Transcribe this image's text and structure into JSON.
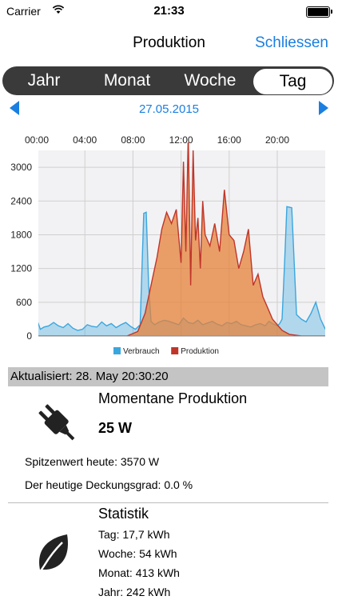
{
  "status_bar": {
    "carrier": "Carrier",
    "time": "21:33"
  },
  "nav": {
    "title": "Produktion",
    "close_label": "Schliessen"
  },
  "segments": [
    {
      "label": "Jahr",
      "selected": false
    },
    {
      "label": "Monat",
      "selected": false
    },
    {
      "label": "Woche",
      "selected": false
    },
    {
      "label": "Tag",
      "selected": true
    }
  ],
  "date": "27.05.2015",
  "chart_data": {
    "type": "area",
    "x_ticks": [
      "00:00",
      "04:00",
      "08:00",
      "12:00",
      "16:00",
      "20:00"
    ],
    "y_ticks": [
      "0",
      "600",
      "1200",
      "1800",
      "2400",
      "3000"
    ],
    "ylim": [
      0,
      3300
    ],
    "xlim": [
      0,
      24
    ],
    "grid": true,
    "legend_position": "bottom",
    "series": [
      {
        "name": "Verbrauch",
        "color": "#3aa6de",
        "x": [
          0,
          0.3,
          0.6,
          1,
          1.4,
          1.8,
          2.2,
          2.6,
          3,
          3.4,
          3.8,
          4.2,
          4.6,
          5,
          5.4,
          5.8,
          6.2,
          6.6,
          7,
          7.4,
          7.8,
          8.2,
          8.6,
          8.9,
          9.1,
          9.3,
          9.5,
          9.8,
          10.2,
          10.6,
          11,
          11.4,
          11.8,
          12.2,
          12.6,
          13,
          13.4,
          13.8,
          14.2,
          14.6,
          15,
          15.4,
          15.8,
          16.2,
          16.6,
          17,
          17.4,
          17.8,
          18.2,
          18.6,
          19,
          19.3,
          19.6,
          19.8,
          20,
          20.2,
          20.4,
          20.6,
          20.8,
          21.2,
          21.6,
          22,
          22.4,
          22.8,
          23.2,
          23.6,
          24
        ],
        "values": [
          300,
          120,
          160,
          180,
          240,
          180,
          150,
          220,
          140,
          100,
          120,
          200,
          170,
          160,
          250,
          180,
          220,
          150,
          200,
          240,
          170,
          120,
          200,
          2180,
          2200,
          900,
          260,
          200,
          250,
          280,
          260,
          230,
          200,
          320,
          240,
          220,
          280,
          200,
          230,
          260,
          210,
          180,
          240,
          220,
          260,
          200,
          180,
          160,
          200,
          220,
          180,
          260,
          220,
          200,
          180,
          220,
          300,
          1250,
          2300,
          2280,
          380,
          300,
          250,
          400,
          600,
          300,
          120
        ]
      },
      {
        "name": "Produktion",
        "color": "#c0352a",
        "x": [
          0,
          7.5,
          8.4,
          9,
          9.5,
          10,
          10.4,
          10.8,
          11.2,
          11.6,
          12,
          12.2,
          12.4,
          12.6,
          12.8,
          13,
          13.2,
          13.4,
          13.6,
          13.8,
          14,
          14.4,
          14.8,
          15.2,
          15.6,
          16,
          16.4,
          16.8,
          17.2,
          17.6,
          18,
          18.4,
          18.8,
          19.2,
          19.6,
          20,
          20.4,
          21,
          22,
          24
        ],
        "values": [
          0,
          0,
          80,
          400,
          900,
          1400,
          1900,
          2200,
          2000,
          2250,
          1300,
          3100,
          1500,
          3600,
          900,
          3300,
          1700,
          2100,
          1200,
          2400,
          1800,
          1600,
          2000,
          1500,
          2600,
          1800,
          1700,
          1200,
          1500,
          1900,
          900,
          1100,
          700,
          500,
          300,
          200,
          100,
          30,
          0,
          0
        ]
      }
    ]
  },
  "updated": "Aktualisiert: 28. May 20:30:20",
  "production": {
    "heading": "Momentane Produktion",
    "current": "25 W",
    "peak": "Spitzenwert heute: 3570 W",
    "coverage": "Der heutige Deckungsgrad: 0.0 %"
  },
  "stats": {
    "heading": "Statistik",
    "day": "Tag: 17,7 kWh",
    "week": "Woche: 54 kWh",
    "month": "Monat: 413 kWh",
    "year": "Jahr: 242 kWh"
  },
  "icons": {
    "plug": "plug-icon",
    "leaf": "leaf-icon",
    "wifi": "wifi-icon",
    "battery": "battery-icon"
  }
}
